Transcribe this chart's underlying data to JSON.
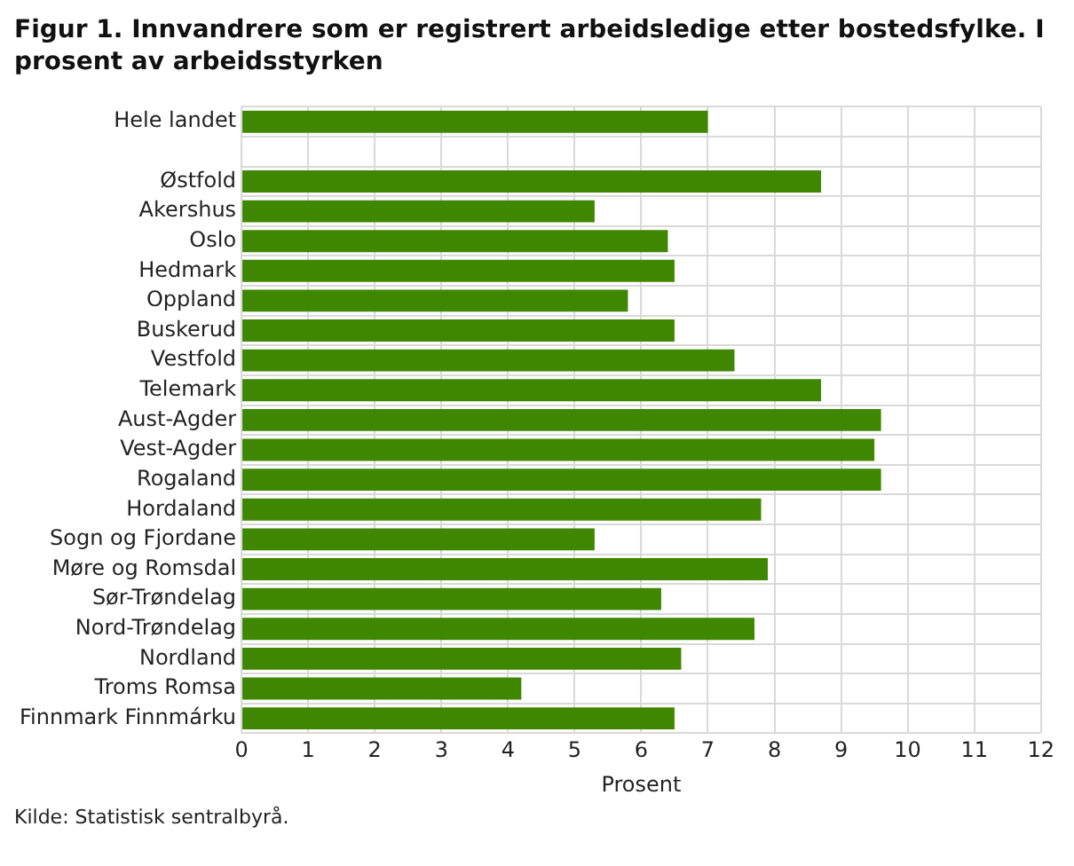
{
  "chart_data": {
    "type": "bar",
    "orientation": "horizontal",
    "title": "Figur 1. Innvandrere som er registrert arbeidsledige etter bostedsfylke. I prosent av arbeidsstyrken",
    "xlabel": "Prosent",
    "categories": [
      "Hele landet",
      null,
      "Østfold",
      "Akershus",
      "Oslo",
      "Hedmark",
      "Oppland",
      "Buskerud",
      "Vestfold",
      "Telemark",
      "Aust-Agder",
      "Vest-Agder",
      "Rogaland",
      "Hordaland",
      "Sogn og Fjordane",
      "Møre og Romsdal",
      "Sør-Trøndelag",
      "Nord-Trøndelag",
      "Nordland",
      "Troms Romsa",
      "Finnmark Finnmárku"
    ],
    "values": [
      7.0,
      null,
      8.7,
      5.3,
      6.4,
      6.5,
      5.8,
      6.5,
      7.4,
      8.7,
      9.6,
      9.5,
      9.6,
      7.8,
      5.3,
      7.9,
      6.3,
      7.7,
      6.6,
      4.2,
      6.5
    ],
    "color": "#3f8700",
    "xlim": [
      0,
      12
    ],
    "xticks": [
      0,
      1,
      2,
      3,
      4,
      5,
      6,
      7,
      8,
      9,
      10,
      11,
      12
    ],
    "grid": true,
    "annotations": [
      "Kilde: Statistisk sentralbyrå."
    ]
  }
}
